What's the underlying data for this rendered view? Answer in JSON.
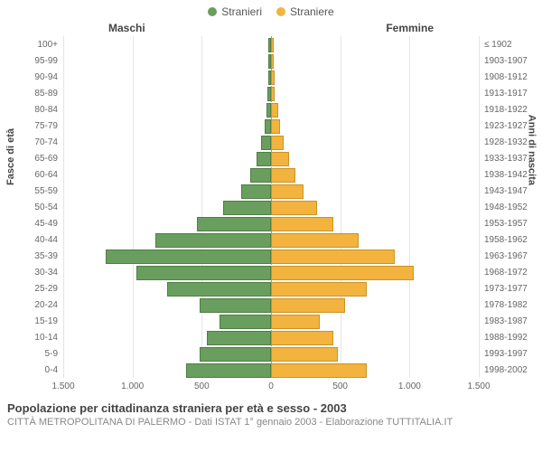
{
  "legend": {
    "male": {
      "label": "Stranieri",
      "color": "#6a9e5e"
    },
    "female": {
      "label": "Straniere",
      "color": "#f2b43e"
    }
  },
  "headers": {
    "left": "Maschi",
    "right": "Femmine"
  },
  "axis_titles": {
    "left": "Fasce di età",
    "right": "Anni di nascita"
  },
  "chart": {
    "type": "population-pyramid",
    "max_value": 1500,
    "x_ticks": [
      -1500,
      -1000,
      -500,
      0,
      500,
      1000,
      1500
    ],
    "x_tick_labels": [
      "1.500",
      "1.000",
      "500",
      "0",
      "500",
      "1.000",
      "1.500"
    ],
    "male_fill": "#6a9e5e",
    "male_stroke": "#4f7d45",
    "female_fill": "#f2b43e",
    "female_stroke": "#cc9226",
    "grid_color": "#e5e5e5",
    "background": "#ffffff",
    "rows": [
      {
        "age": "100+",
        "year": "≤ 1902",
        "m": 5,
        "f": 5
      },
      {
        "age": "95-99",
        "year": "1903-1907",
        "m": 5,
        "f": 5
      },
      {
        "age": "90-94",
        "year": "1908-1912",
        "m": 8,
        "f": 10
      },
      {
        "age": "85-89",
        "year": "1913-1917",
        "m": 10,
        "f": 15
      },
      {
        "age": "80-84",
        "year": "1918-1922",
        "m": 20,
        "f": 40
      },
      {
        "age": "75-79",
        "year": "1923-1927",
        "m": 30,
        "f": 50
      },
      {
        "age": "70-74",
        "year": "1928-1932",
        "m": 60,
        "f": 80
      },
      {
        "age": "65-69",
        "year": "1933-1937",
        "m": 90,
        "f": 120
      },
      {
        "age": "60-64",
        "year": "1938-1942",
        "m": 140,
        "f": 160
      },
      {
        "age": "55-59",
        "year": "1943-1947",
        "m": 200,
        "f": 220
      },
      {
        "age": "50-54",
        "year": "1948-1952",
        "m": 330,
        "f": 320
      },
      {
        "age": "45-49",
        "year": "1953-1957",
        "m": 520,
        "f": 440
      },
      {
        "age": "40-44",
        "year": "1958-1962",
        "m": 820,
        "f": 620
      },
      {
        "age": "35-39",
        "year": "1963-1967",
        "m": 1180,
        "f": 880
      },
      {
        "age": "30-34",
        "year": "1968-1972",
        "m": 960,
        "f": 1020
      },
      {
        "age": "25-29",
        "year": "1973-1977",
        "m": 740,
        "f": 680
      },
      {
        "age": "20-24",
        "year": "1978-1982",
        "m": 500,
        "f": 520
      },
      {
        "age": "15-19",
        "year": "1983-1987",
        "m": 360,
        "f": 340
      },
      {
        "age": "10-14",
        "year": "1988-1992",
        "m": 450,
        "f": 440
      },
      {
        "age": "5-9",
        "year": "1993-1997",
        "m": 500,
        "f": 470
      },
      {
        "age": "0-4",
        "year": "1998-2002",
        "m": 600,
        "f": 680
      }
    ]
  },
  "footer": {
    "title": "Popolazione per cittadinanza straniera per età e sesso - 2003",
    "sub": "CITTÀ METROPOLITANA DI PALERMO - Dati ISTAT 1° gennaio 2003 - Elaborazione TUTTITALIA.IT"
  }
}
